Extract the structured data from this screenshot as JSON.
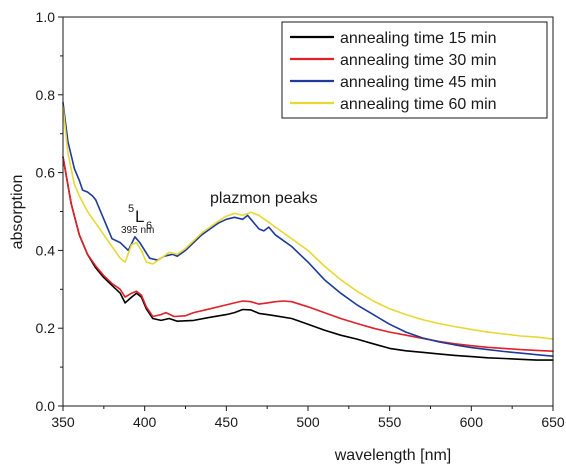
{
  "chart_data": {
    "type": "line",
    "xlabel": "wavelength [nm]",
    "ylabel": "absorption",
    "xlim": [
      350,
      650
    ],
    "ylim": [
      0.0,
      1.0
    ],
    "xticks": [
      350,
      400,
      450,
      500,
      550,
      600,
      650
    ],
    "yticks": [
      0.0,
      0.2,
      0.4,
      0.6,
      0.8,
      1.0
    ],
    "xtick_labels": [
      "350",
      "400",
      "450",
      "500",
      "550",
      "600",
      "650"
    ],
    "ytick_labels": [
      "0.0",
      "0.2",
      "0.4",
      "0.6",
      "0.8",
      "1.0"
    ],
    "grid": false,
    "legend_position": "top-right",
    "annotations": {
      "level_superscript": "5",
      "level_main": "L",
      "level_subscript": "6",
      "level_wavelength": "395 nm",
      "peaks_label": "plazmon peaks"
    },
    "series": [
      {
        "name": "annealing time 15 min",
        "color": "#000000",
        "points": [
          [
            350,
            0.64
          ],
          [
            355,
            0.52
          ],
          [
            360,
            0.44
          ],
          [
            365,
            0.39
          ],
          [
            370,
            0.355
          ],
          [
            375,
            0.33
          ],
          [
            380,
            0.31
          ],
          [
            385,
            0.29
          ],
          [
            388,
            0.265
          ],
          [
            392,
            0.28
          ],
          [
            395,
            0.29
          ],
          [
            398,
            0.28
          ],
          [
            401,
            0.25
          ],
          [
            405,
            0.225
          ],
          [
            410,
            0.22
          ],
          [
            415,
            0.225
          ],
          [
            420,
            0.218
          ],
          [
            430,
            0.22
          ],
          [
            440,
            0.228
          ],
          [
            450,
            0.235
          ],
          [
            455,
            0.24
          ],
          [
            460,
            0.248
          ],
          [
            465,
            0.247
          ],
          [
            470,
            0.238
          ],
          [
            475,
            0.235
          ],
          [
            480,
            0.232
          ],
          [
            490,
            0.225
          ],
          [
            500,
            0.21
          ],
          [
            510,
            0.195
          ],
          [
            520,
            0.182
          ],
          [
            530,
            0.172
          ],
          [
            540,
            0.16
          ],
          [
            550,
            0.148
          ],
          [
            560,
            0.142
          ],
          [
            570,
            0.138
          ],
          [
            580,
            0.134
          ],
          [
            590,
            0.13
          ],
          [
            600,
            0.127
          ],
          [
            610,
            0.124
          ],
          [
            620,
            0.122
          ],
          [
            630,
            0.12
          ],
          [
            640,
            0.118
          ],
          [
            650,
            0.118
          ]
        ]
      },
      {
        "name": "annealing time 30 min",
        "color": "#e0202a",
        "points": [
          [
            350,
            0.64
          ],
          [
            355,
            0.52
          ],
          [
            360,
            0.44
          ],
          [
            365,
            0.39
          ],
          [
            370,
            0.36
          ],
          [
            375,
            0.335
          ],
          [
            380,
            0.315
          ],
          [
            385,
            0.3
          ],
          [
            388,
            0.28
          ],
          [
            392,
            0.29
          ],
          [
            395,
            0.295
          ],
          [
            398,
            0.285
          ],
          [
            401,
            0.255
          ],
          [
            405,
            0.23
          ],
          [
            410,
            0.235
          ],
          [
            413,
            0.24
          ],
          [
            418,
            0.23
          ],
          [
            425,
            0.232
          ],
          [
            430,
            0.24
          ],
          [
            440,
            0.25
          ],
          [
            450,
            0.26
          ],
          [
            455,
            0.265
          ],
          [
            460,
            0.27
          ],
          [
            465,
            0.268
          ],
          [
            470,
            0.262
          ],
          [
            475,
            0.265
          ],
          [
            480,
            0.268
          ],
          [
            485,
            0.27
          ],
          [
            490,
            0.268
          ],
          [
            500,
            0.255
          ],
          [
            510,
            0.24
          ],
          [
            520,
            0.225
          ],
          [
            530,
            0.212
          ],
          [
            540,
            0.2
          ],
          [
            550,
            0.19
          ],
          [
            560,
            0.182
          ],
          [
            570,
            0.174
          ],
          [
            580,
            0.166
          ],
          [
            590,
            0.16
          ],
          [
            600,
            0.155
          ],
          [
            610,
            0.151
          ],
          [
            620,
            0.148
          ],
          [
            630,
            0.145
          ],
          [
            640,
            0.143
          ],
          [
            650,
            0.141
          ]
        ]
      },
      {
        "name": "annealing time 45 min",
        "color": "#1e3a9a",
        "points": [
          [
            350,
            0.78
          ],
          [
            353,
            0.68
          ],
          [
            357,
            0.61
          ],
          [
            360,
            0.58
          ],
          [
            362,
            0.555
          ],
          [
            365,
            0.55
          ],
          [
            368,
            0.54
          ],
          [
            370,
            0.53
          ],
          [
            373,
            0.5
          ],
          [
            376,
            0.47
          ],
          [
            380,
            0.43
          ],
          [
            385,
            0.42
          ],
          [
            390,
            0.4
          ],
          [
            394,
            0.435
          ],
          [
            397,
            0.42
          ],
          [
            400,
            0.4
          ],
          [
            403,
            0.38
          ],
          [
            408,
            0.375
          ],
          [
            412,
            0.385
          ],
          [
            417,
            0.39
          ],
          [
            420,
            0.385
          ],
          [
            425,
            0.4
          ],
          [
            430,
            0.42
          ],
          [
            435,
            0.44
          ],
          [
            440,
            0.455
          ],
          [
            445,
            0.47
          ],
          [
            450,
            0.48
          ],
          [
            455,
            0.485
          ],
          [
            460,
            0.48
          ],
          [
            463,
            0.49
          ],
          [
            466,
            0.475
          ],
          [
            470,
            0.455
          ],
          [
            473,
            0.45
          ],
          [
            476,
            0.46
          ],
          [
            480,
            0.44
          ],
          [
            485,
            0.425
          ],
          [
            490,
            0.41
          ],
          [
            495,
            0.39
          ],
          [
            500,
            0.37
          ],
          [
            510,
            0.325
          ],
          [
            520,
            0.29
          ],
          [
            530,
            0.26
          ],
          [
            540,
            0.235
          ],
          [
            550,
            0.21
          ],
          [
            560,
            0.19
          ],
          [
            570,
            0.175
          ],
          [
            580,
            0.165
          ],
          [
            590,
            0.157
          ],
          [
            600,
            0.15
          ],
          [
            610,
            0.145
          ],
          [
            620,
            0.14
          ],
          [
            630,
            0.136
          ],
          [
            640,
            0.132
          ],
          [
            650,
            0.128
          ]
        ]
      },
      {
        "name": "annealing time 60 min",
        "color": "#e8d834",
        "points": [
          [
            350,
            0.77
          ],
          [
            353,
            0.65
          ],
          [
            357,
            0.57
          ],
          [
            360,
            0.54
          ],
          [
            365,
            0.5
          ],
          [
            370,
            0.47
          ],
          [
            375,
            0.44
          ],
          [
            380,
            0.41
          ],
          [
            385,
            0.38
          ],
          [
            388,
            0.37
          ],
          [
            392,
            0.415
          ],
          [
            395,
            0.42
          ],
          [
            398,
            0.4
          ],
          [
            401,
            0.37
          ],
          [
            405,
            0.365
          ],
          [
            410,
            0.38
          ],
          [
            415,
            0.395
          ],
          [
            420,
            0.39
          ],
          [
            425,
            0.405
          ],
          [
            430,
            0.425
          ],
          [
            435,
            0.445
          ],
          [
            440,
            0.46
          ],
          [
            445,
            0.475
          ],
          [
            450,
            0.488
          ],
          [
            455,
            0.495
          ],
          [
            460,
            0.49
          ],
          [
            465,
            0.498
          ],
          [
            470,
            0.49
          ],
          [
            475,
            0.475
          ],
          [
            480,
            0.46
          ],
          [
            485,
            0.445
          ],
          [
            490,
            0.43
          ],
          [
            495,
            0.415
          ],
          [
            500,
            0.4
          ],
          [
            510,
            0.36
          ],
          [
            520,
            0.325
          ],
          [
            530,
            0.295
          ],
          [
            540,
            0.27
          ],
          [
            550,
            0.25
          ],
          [
            560,
            0.235
          ],
          [
            570,
            0.222
          ],
          [
            580,
            0.212
          ],
          [
            590,
            0.204
          ],
          [
            600,
            0.197
          ],
          [
            610,
            0.19
          ],
          [
            620,
            0.185
          ],
          [
            630,
            0.18
          ],
          [
            640,
            0.177
          ],
          [
            650,
            0.172
          ]
        ]
      }
    ]
  }
}
